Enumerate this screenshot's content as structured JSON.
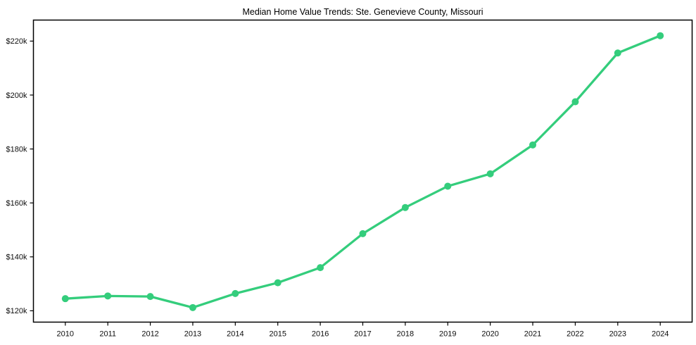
{
  "figure": {
    "background": "#ffffff"
  },
  "chart_data": {
    "type": "line",
    "title": "Median Home Value Trends: Ste. Genevieve County, Missouri",
    "x": [
      "2010",
      "2011",
      "2012",
      "2013",
      "2014",
      "2015",
      "2016",
      "2017",
      "2018",
      "2019",
      "2020",
      "2021",
      "2022",
      "2023",
      "2024"
    ],
    "series": [
      {
        "name": "Median Home Value",
        "values": [
          124500,
          125500,
          125300,
          121200,
          126400,
          130400,
          136000,
          148600,
          158300,
          166200,
          170800,
          181500,
          197500,
          215600,
          222000
        ]
      }
    ],
    "yticks": [
      {
        "value": 120000,
        "label": "$120k"
      },
      {
        "value": 140000,
        "label": "$140k"
      },
      {
        "value": 160000,
        "label": "$160k"
      },
      {
        "value": 180000,
        "label": "$180k"
      },
      {
        "value": 200000,
        "label": "$200k"
      },
      {
        "value": 220000,
        "label": "$220k"
      }
    ],
    "ylim": [
      115800,
      227800
    ],
    "xlabel": "",
    "ylabel": "",
    "grid": false,
    "legend": null,
    "line_color": "#34cd7c",
    "axis_color": "#000000",
    "text_color": "#0d0d0d",
    "marker": "circle"
  }
}
